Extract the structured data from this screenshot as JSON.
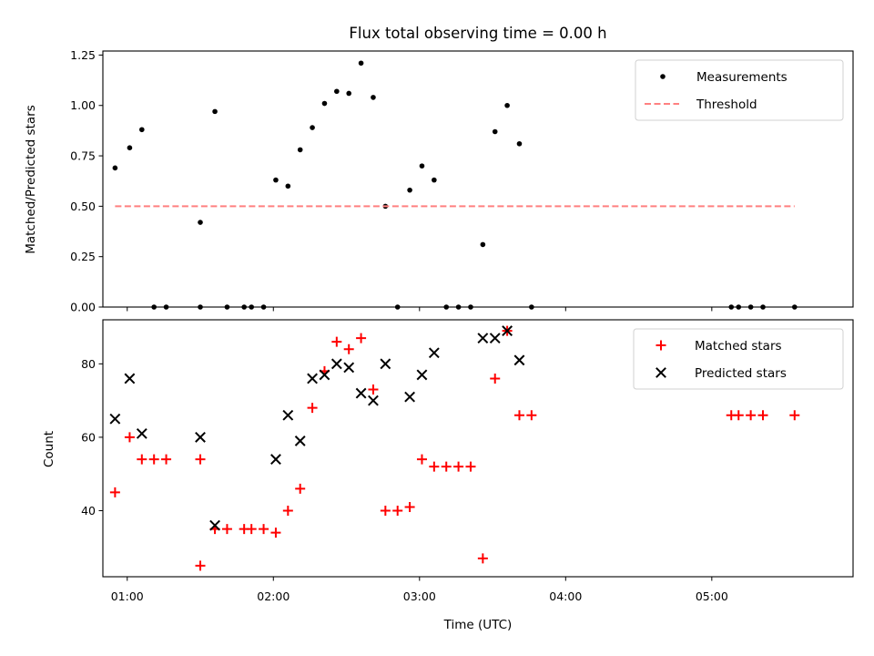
{
  "chart_data": [
    {
      "type": "scatter",
      "title": "Flux total observing time = 0.00 h",
      "xlabel": "",
      "ylabel": "Matched/Predicted stars",
      "ylim": [
        0,
        1.27
      ],
      "xlim": [
        "00:50",
        "05:58"
      ],
      "x_ticks": [
        "01:00",
        "02:00",
        "03:00",
        "04:00",
        "05:00"
      ],
      "y_ticks": [
        "0.00",
        "0.25",
        "0.50",
        "0.75",
        "1.00",
        "1.25"
      ],
      "grid": false,
      "legend_position": "upper right",
      "series": [
        {
          "name": "Measurements",
          "style": "dot",
          "color": "#000000",
          "points": [
            [
              "00:55",
              0.69
            ],
            [
              "01:01",
              0.79
            ],
            [
              "01:06",
              0.88
            ],
            [
              "01:11",
              0.0
            ],
            [
              "01:16",
              0.0
            ],
            [
              "01:30",
              0.0
            ],
            [
              "01:30",
              0.42
            ],
            [
              "01:36",
              0.97
            ],
            [
              "01:41",
              0.0
            ],
            [
              "01:48",
              0.0
            ],
            [
              "01:51",
              0.0
            ],
            [
              "01:56",
              0.0
            ],
            [
              "02:01",
              0.63
            ],
            [
              "02:06",
              0.6
            ],
            [
              "02:11",
              0.78
            ],
            [
              "02:16",
              0.89
            ],
            [
              "02:21",
              1.01
            ],
            [
              "02:26",
              1.07
            ],
            [
              "02:31",
              1.06
            ],
            [
              "02:36",
              1.21
            ],
            [
              "02:41",
              1.04
            ],
            [
              "02:46",
              0.5
            ],
            [
              "02:51",
              0.0
            ],
            [
              "02:56",
              0.58
            ],
            [
              "03:01",
              0.7
            ],
            [
              "03:06",
              0.63
            ],
            [
              "03:11",
              0.0
            ],
            [
              "03:16",
              0.0
            ],
            [
              "03:21",
              0.0
            ],
            [
              "03:26",
              0.31
            ],
            [
              "03:31",
              0.87
            ],
            [
              "03:36",
              1.0
            ],
            [
              "03:41",
              0.81
            ],
            [
              "03:46",
              0.0
            ],
            [
              "05:08",
              0.0
            ],
            [
              "05:11",
              0.0
            ],
            [
              "05:16",
              0.0
            ],
            [
              "05:21",
              0.0
            ],
            [
              "05:34",
              0.0
            ]
          ]
        },
        {
          "name": "Threshold",
          "style": "dashed-line",
          "color": "#ff8080",
          "points": [
            [
              "00:55",
              0.5
            ],
            [
              "05:34",
              0.5
            ]
          ]
        }
      ]
    },
    {
      "type": "scatter",
      "title": "",
      "xlabel": "Time (UTC)",
      "ylabel": "Count",
      "ylim": [
        22,
        92
      ],
      "xlim": [
        "00:50",
        "05:58"
      ],
      "x_ticks": [
        "01:00",
        "02:00",
        "03:00",
        "04:00",
        "05:00"
      ],
      "y_ticks": [
        "40",
        "60",
        "80"
      ],
      "grid": false,
      "legend_position": "upper right",
      "series": [
        {
          "name": "Matched stars",
          "style": "plus",
          "color": "#ff0000",
          "points": [
            [
              "00:55",
              45
            ],
            [
              "01:01",
              60
            ],
            [
              "01:06",
              54
            ],
            [
              "01:11",
              54
            ],
            [
              "01:16",
              54
            ],
            [
              "01:30",
              54
            ],
            [
              "01:30",
              25
            ],
            [
              "01:36",
              35
            ],
            [
              "01:41",
              35
            ],
            [
              "01:48",
              35
            ],
            [
              "01:51",
              35
            ],
            [
              "01:56",
              35
            ],
            [
              "02:01",
              34
            ],
            [
              "02:06",
              40
            ],
            [
              "02:11",
              46
            ],
            [
              "02:16",
              68
            ],
            [
              "02:21",
              78
            ],
            [
              "02:26",
              86
            ],
            [
              "02:31",
              84
            ],
            [
              "02:36",
              87
            ],
            [
              "02:41",
              73
            ],
            [
              "02:46",
              40
            ],
            [
              "02:51",
              40
            ],
            [
              "02:56",
              41
            ],
            [
              "03:01",
              54
            ],
            [
              "03:06",
              52
            ],
            [
              "03:11",
              52
            ],
            [
              "03:16",
              52
            ],
            [
              "03:21",
              52
            ],
            [
              "03:26",
              27
            ],
            [
              "03:31",
              76
            ],
            [
              "03:36",
              89
            ],
            [
              "03:41",
              66
            ],
            [
              "03:46",
              66
            ],
            [
              "05:08",
              66
            ],
            [
              "05:11",
              66
            ],
            [
              "05:16",
              66
            ],
            [
              "05:21",
              66
            ],
            [
              "05:34",
              66
            ]
          ]
        },
        {
          "name": "Predicted stars",
          "style": "x",
          "color": "#000000",
          "points": [
            [
              "00:55",
              65
            ],
            [
              "01:01",
              76
            ],
            [
              "01:06",
              61
            ],
            [
              "01:30",
              60
            ],
            [
              "01:36",
              36
            ],
            [
              "02:01",
              54
            ],
            [
              "02:06",
              66
            ],
            [
              "02:11",
              59
            ],
            [
              "02:16",
              76
            ],
            [
              "02:21",
              77
            ],
            [
              "02:26",
              80
            ],
            [
              "02:31",
              79
            ],
            [
              "02:36",
              72
            ],
            [
              "02:41",
              70
            ],
            [
              "02:46",
              80
            ],
            [
              "02:56",
              71
            ],
            [
              "03:01",
              77
            ],
            [
              "03:06",
              83
            ],
            [
              "03:26",
              87
            ],
            [
              "03:31",
              87
            ],
            [
              "03:36",
              89
            ],
            [
              "03:41",
              81
            ]
          ]
        }
      ]
    }
  ]
}
